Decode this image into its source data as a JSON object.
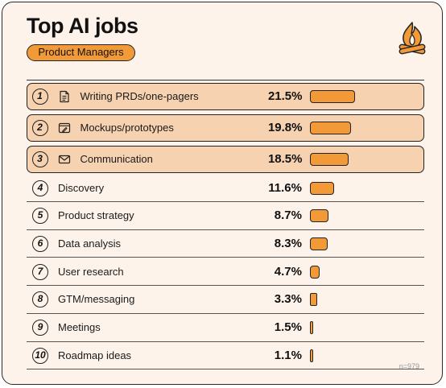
{
  "header": {
    "title": "Top AI jobs",
    "subtitle": "Product Managers",
    "logo_icon": "campfire-icon",
    "sample_size": "n=979"
  },
  "colors": {
    "accent": "#f29a37",
    "highlight_row": "#f6d2b0",
    "card_bg": "#fdf3ea",
    "ink": "#222222"
  },
  "chart_data": {
    "type": "bar",
    "title": "Top AI jobs",
    "subtitle": "Product Managers",
    "categories": [
      "Writing PRDs/one-pagers",
      "Mockups/prototypes",
      "Communication",
      "Discovery",
      "Product strategy",
      "Data analysis",
      "User research",
      "GTM/messaging",
      "Meetings",
      "Roadmap ideas"
    ],
    "values": [
      21.5,
      19.8,
      18.5,
      11.6,
      8.7,
      8.3,
      4.7,
      3.3,
      1.5,
      1.1
    ],
    "value_labels": [
      "21.5%",
      "19.8%",
      "18.5%",
      "11.6%",
      "8.7%",
      "8.3%",
      "4.7%",
      "3.3%",
      "1.5%",
      "1.1%"
    ],
    "ranks": [
      "1",
      "2",
      "3",
      "4",
      "5",
      "6",
      "7",
      "8",
      "9",
      "10"
    ],
    "highlighted": [
      true,
      true,
      true,
      false,
      false,
      false,
      false,
      false,
      false,
      false
    ],
    "icons": [
      "document-icon",
      "mockup-icon",
      "envelope-icon",
      "",
      "",
      "",
      "",
      "",
      "",
      ""
    ],
    "orientation": "horizontal",
    "unit": "%"
  }
}
